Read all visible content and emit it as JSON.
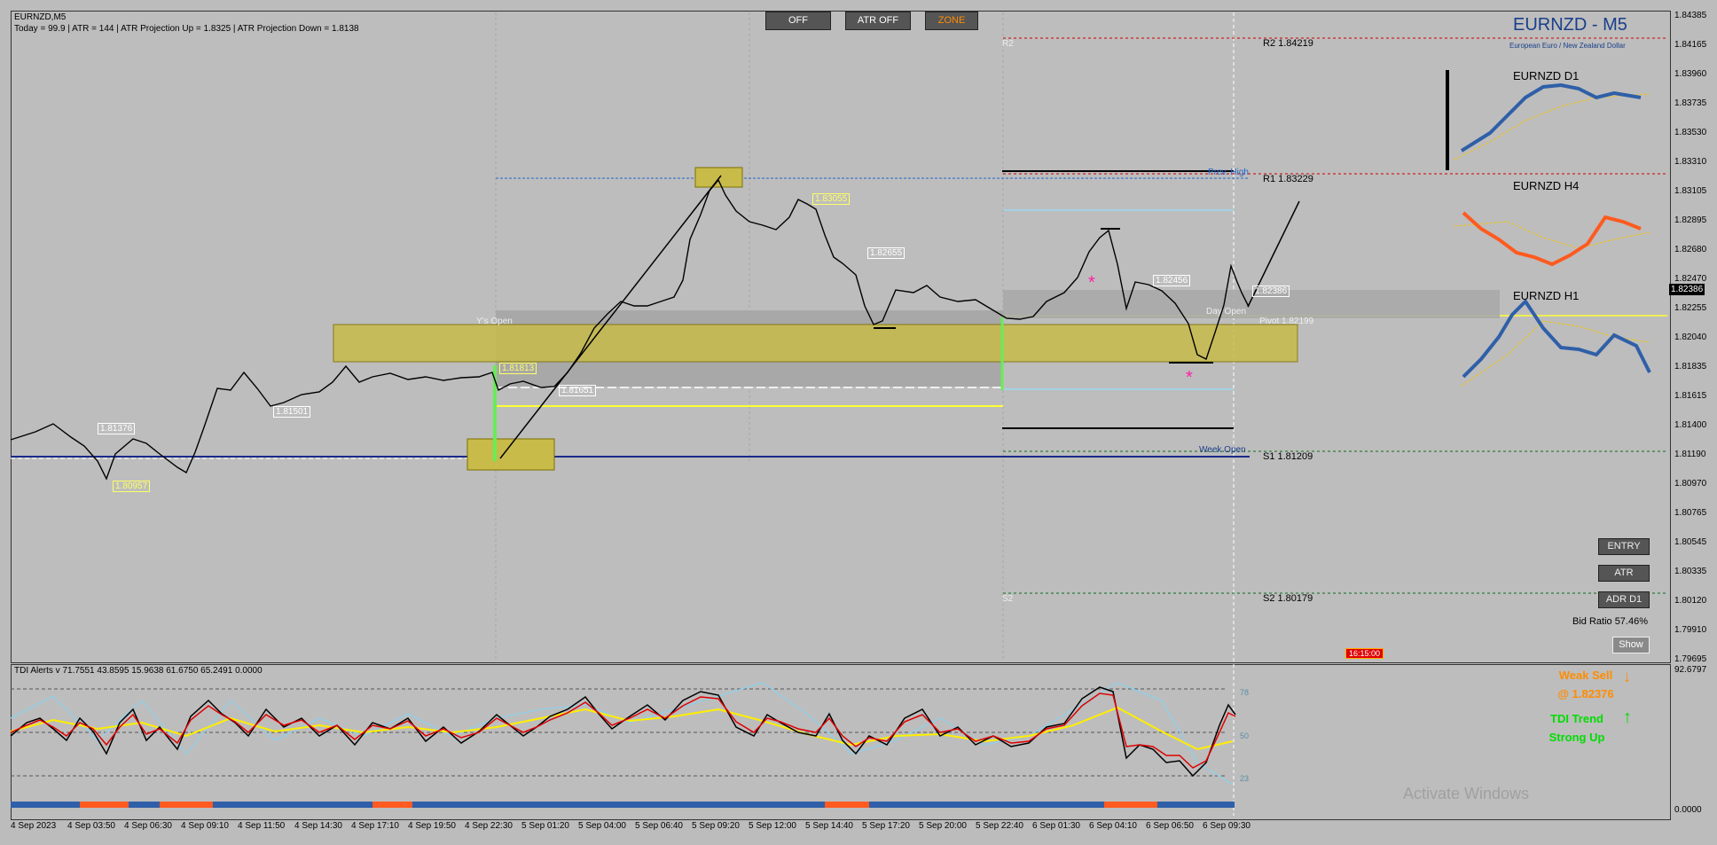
{
  "window": {
    "symbol_tf": "EURNZD,M5",
    "stats": "Today = 99.9   |   ATR = 144   |   ATR Projection Up = 1.8325   |   ATR Projection Down = 1.8138"
  },
  "top_buttons": [
    "OFF",
    "ATR OFF",
    "ZONE"
  ],
  "header": {
    "title": "EURNZD - M5",
    "subtitle": "European Euro / New Zealand Dollar"
  },
  "pivots": {
    "r2": "R2 1.84219",
    "r1": "R1 1.83229",
    "pivot": "Pivot 1.82199",
    "s1": "S1 1.81209",
    "s2": "S2 1.80179",
    "r2_left": "R2",
    "s2_left": "S2",
    "week_open": "Week Open",
    "prev_high": "Prev. High",
    "day_open": "Day Open",
    "yd_open": "Y's Open"
  },
  "mini_charts": [
    "EURNZD D1",
    "EURNZD H4",
    "EURNZD H1"
  ],
  "side_buttons": [
    "ENTRY",
    "ATR",
    "ADR D1"
  ],
  "bid_ratio": "Bid Ratio 57.46%",
  "show_button": "Show",
  "price_labels": [
    {
      "text": "1.81376",
      "c": "w"
    },
    {
      "text": "1.80957",
      "c": "y"
    },
    {
      "text": "1.81501",
      "c": "w"
    },
    {
      "text": "1.81813",
      "c": "y"
    },
    {
      "text": "1.83055",
      "c": "y"
    },
    {
      "text": "1.82655",
      "c": "w"
    },
    {
      "text": "1.82456",
      "c": "w"
    },
    {
      "text": "1.82386",
      "c": "w"
    },
    {
      "text": "1.81651",
      "c": "w"
    }
  ],
  "current_price": "1.82386",
  "y_axis": [
    "1.84385",
    "1.84165",
    "1.83960",
    "1.83735",
    "1.83530",
    "1.83310",
    "1.83105",
    "1.82895",
    "1.82680",
    "1.82470",
    "1.82255",
    "1.82040",
    "1.81835",
    "1.81615",
    "1.81400",
    "1.81190",
    "1.80970",
    "1.80765",
    "1.80545",
    "1.80335",
    "1.80120",
    "1.79910",
    "1.79695"
  ],
  "x_axis": [
    "4 Sep 2023",
    "4 Sep 03:50",
    "4 Sep 06:30",
    "4 Sep 09:10",
    "4 Sep 11:50",
    "4 Sep 14:30",
    "4 Sep 17:10",
    "4 Sep 19:50",
    "4 Sep 22:30",
    "5 Sep 01:20",
    "5 Sep 04:00",
    "5 Sep 06:40",
    "5 Sep 09:20",
    "5 Sep 12:00",
    "5 Sep 14:40",
    "5 Sep 17:20",
    "5 Sep 20:00",
    "5 Sep 22:40",
    "6 Sep 01:30",
    "6 Sep 04:10",
    "6 Sep 06:50",
    "6 Sep 09:30"
  ],
  "indicator": {
    "header": "TDI Alerts v 71.7551 43.8595 15.9638 61.6750 65.2491 0.0000",
    "levels": [
      "78",
      "50",
      "23"
    ],
    "axis_top": "92.6797",
    "axis_bottom": "0.0000",
    "signal1_line1": "Weak Sell",
    "signal1_line2": "@ 1.82376",
    "signal2_line1": "TDI Trend",
    "signal2_line2": "Strong Up"
  },
  "time_tag": "16:15:00",
  "watermark": "Activate Windows",
  "colors": {
    "bg": "#bcbcbc",
    "zone": "#c8bb4a",
    "pivot_red": "#d00000",
    "sell": "#ff8c00",
    "buy": "#00dd00"
  }
}
